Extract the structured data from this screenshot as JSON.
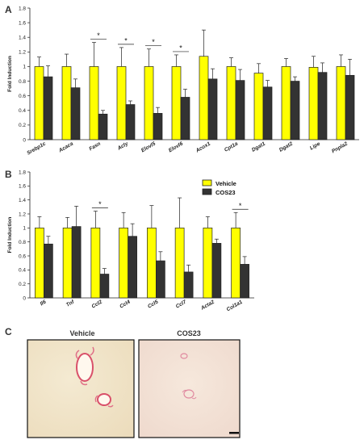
{
  "panels": {
    "a": "A",
    "b": "B",
    "c": "C"
  },
  "colors": {
    "vehicle": "#ffff00",
    "cos23": "#333333",
    "axis": "#222222",
    "tissue": "#f3e8cf",
    "stain": "#d9506a"
  },
  "legend": {
    "vehicle": "Vehicle",
    "cos23": "COS23"
  },
  "chart_data": [
    {
      "type": "bar",
      "panel": "A",
      "ylabel": "Fold Induction",
      "ylim": [
        0,
        1.8
      ],
      "yticks": [
        "0",
        "0.2",
        "0.4",
        "0.6",
        "0.8",
        "1",
        "1.2",
        "1.4",
        "1.6",
        "1.8"
      ],
      "categories": [
        "Srebp1c",
        "Acaca",
        "Fasn",
        "Acly",
        "Elovl5",
        "Elovl6",
        "Acox1",
        "Cpt1a",
        "Dgat1",
        "Dgat2",
        "Lipe",
        "Pnpla2"
      ],
      "series": [
        {
          "name": "Vehicle",
          "values": [
            1.0,
            1.0,
            1.0,
            1.0,
            1.0,
            1.0,
            1.14,
            1.0,
            0.91,
            1.0,
            0.99,
            1.0
          ],
          "errors": [
            0.13,
            0.17,
            0.33,
            0.26,
            0.24,
            0.16,
            0.36,
            0.12,
            0.13,
            0.11,
            0.15,
            0.16
          ]
        },
        {
          "name": "COS23",
          "values": [
            0.86,
            0.71,
            0.35,
            0.48,
            0.36,
            0.58,
            0.83,
            0.81,
            0.72,
            0.8,
            0.92,
            0.88
          ],
          "errors": [
            0.15,
            0.12,
            0.05,
            0.05,
            0.08,
            0.11,
            0.14,
            0.15,
            0.09,
            0.06,
            0.13,
            0.22
          ]
        }
      ],
      "significance": [
        "",
        "",
        "*",
        "*",
        "*",
        "*",
        "",
        "",
        "",
        "",
        "",
        ""
      ]
    },
    {
      "type": "bar",
      "panel": "B",
      "ylabel": "Fold Induction",
      "ylim": [
        0,
        1.8
      ],
      "yticks": [
        "0",
        "0.2",
        "0.4",
        "0.6",
        "0.8",
        "1",
        "1.2",
        "1.4",
        "1.6",
        "1.8"
      ],
      "categories": [
        "Il6",
        "Tnf",
        "Ccl2",
        "Ccl4",
        "Ccl5",
        "Ccl7",
        "Acta2",
        "Col1a1"
      ],
      "series": [
        {
          "name": "Vehicle",
          "values": [
            1.0,
            1.0,
            1.0,
            1.0,
            1.0,
            1.0,
            1.0,
            1.0
          ],
          "errors": [
            0.16,
            0.15,
            0.24,
            0.22,
            0.32,
            0.43,
            0.16,
            0.22
          ]
        },
        {
          "name": "COS23",
          "values": [
            0.77,
            1.02,
            0.34,
            0.88,
            0.53,
            0.37,
            0.78,
            0.48
          ],
          "errors": [
            0.11,
            0.29,
            0.08,
            0.18,
            0.13,
            0.1,
            0.06,
            0.11
          ]
        }
      ],
      "significance": [
        "",
        "",
        "*",
        "",
        "",
        "",
        "",
        "*"
      ]
    }
  ],
  "micrographs": {
    "left_title": "Vehicle",
    "right_title": "COS23"
  }
}
